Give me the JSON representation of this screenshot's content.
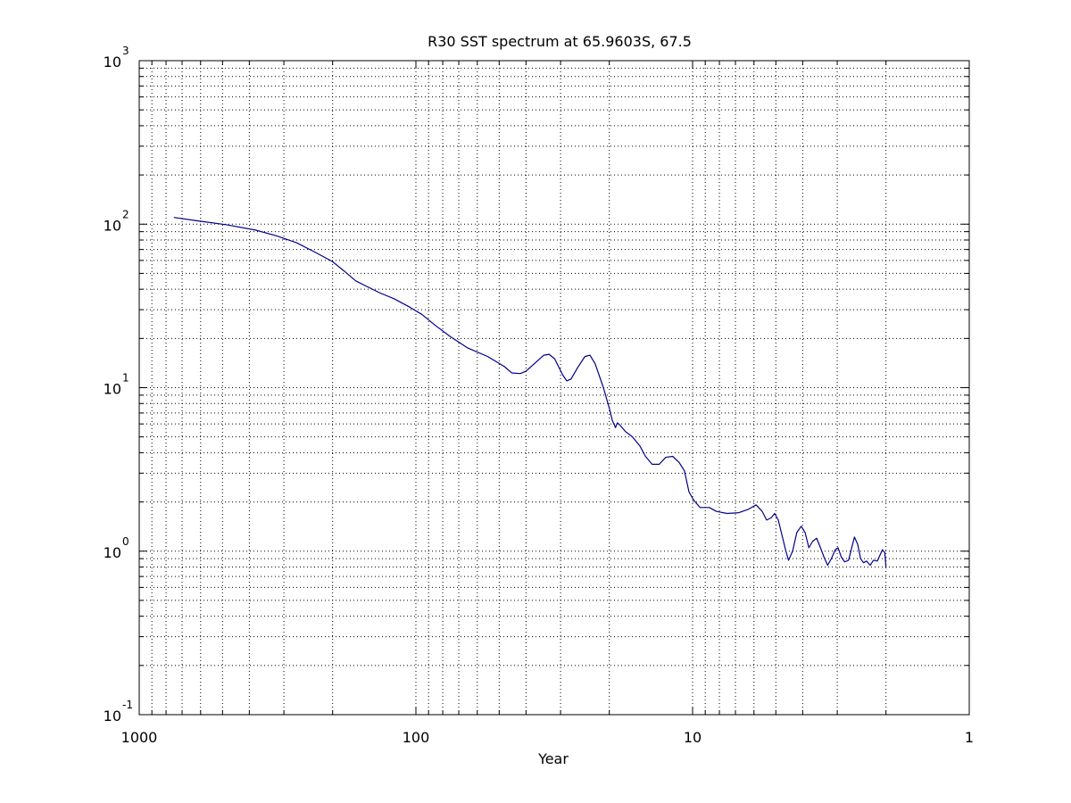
{
  "chart_data": {
    "type": "line",
    "title": "R30 SST spectrum at 65.9603S, 67.5",
    "xlabel": "Year",
    "ylabel": "",
    "x_scale": "log",
    "y_scale": "log",
    "x_reversed": true,
    "xlim": [
      1000,
      1
    ],
    "ylim": [
      0.1,
      1000
    ],
    "grid": true,
    "x_ticks": [
      {
        "value": 1000,
        "label": "1000"
      },
      {
        "value": 100,
        "label": "100"
      },
      {
        "value": 10,
        "label": "10"
      },
      {
        "value": 1,
        "label": "1"
      }
    ],
    "y_ticks": [
      {
        "value": 0.1,
        "base": "10",
        "exp": "-1"
      },
      {
        "value": 1,
        "base": "10",
        "exp": "0"
      },
      {
        "value": 10,
        "base": "10",
        "exp": "1"
      },
      {
        "value": 100,
        "base": "10",
        "exp": "2"
      },
      {
        "value": 1000,
        "base": "10",
        "exp": "3"
      }
    ],
    "series": [
      {
        "color": "#00008b",
        "points": [
          [
            750,
            110
          ],
          [
            620,
            105
          ],
          [
            480,
            99
          ],
          [
            380,
            92
          ],
          [
            320,
            85
          ],
          [
            270,
            77
          ],
          [
            230,
            67
          ],
          [
            200,
            59
          ],
          [
            180,
            51
          ],
          [
            165,
            45
          ],
          [
            150,
            41.5
          ],
          [
            135,
            38
          ],
          [
            120,
            35
          ],
          [
            105,
            31
          ],
          [
            95,
            28
          ],
          [
            85,
            24
          ],
          [
            75,
            20.5
          ],
          [
            65,
            17.5
          ],
          [
            55,
            15.5
          ],
          [
            48,
            13.5
          ],
          [
            45,
            12.3
          ],
          [
            42,
            12.2
          ],
          [
            40,
            12.6
          ],
          [
            37,
            14.2
          ],
          [
            34.5,
            15.8
          ],
          [
            33,
            16
          ],
          [
            31.5,
            15
          ],
          [
            29.5,
            12
          ],
          [
            28.5,
            11
          ],
          [
            27.5,
            11.3
          ],
          [
            26,
            13.3
          ],
          [
            24.5,
            15.5
          ],
          [
            23.5,
            15.8
          ],
          [
            22.5,
            14
          ],
          [
            21,
            10
          ],
          [
            20,
            7.5
          ],
          [
            19.5,
            6.3
          ],
          [
            19,
            5.7
          ],
          [
            18.7,
            6.1
          ],
          [
            18.3,
            5.9
          ],
          [
            17.5,
            5.4
          ],
          [
            16.5,
            5
          ],
          [
            15.5,
            4.4
          ],
          [
            14.8,
            3.8
          ],
          [
            14,
            3.4
          ],
          [
            13.2,
            3.4
          ],
          [
            12.5,
            3.75
          ],
          [
            11.8,
            3.8
          ],
          [
            11.2,
            3.5
          ],
          [
            10.7,
            3.1
          ],
          [
            10.3,
            2.3
          ],
          [
            9.9,
            2.05
          ],
          [
            9.4,
            1.85
          ],
          [
            8.7,
            1.85
          ],
          [
            8.2,
            1.75
          ],
          [
            7.5,
            1.7
          ],
          [
            6.8,
            1.72
          ],
          [
            6.3,
            1.8
          ],
          [
            5.9,
            1.92
          ],
          [
            5.6,
            1.75
          ],
          [
            5.4,
            1.55
          ],
          [
            5.2,
            1.6
          ],
          [
            5.05,
            1.7
          ],
          [
            4.9,
            1.55
          ],
          [
            4.75,
            1.25
          ],
          [
            4.6,
            1.0
          ],
          [
            4.5,
            0.88
          ],
          [
            4.35,
            1.0
          ],
          [
            4.2,
            1.3
          ],
          [
            4.05,
            1.42
          ],
          [
            3.92,
            1.3
          ],
          [
            3.8,
            1.05
          ],
          [
            3.68,
            1.15
          ],
          [
            3.56,
            1.2
          ],
          [
            3.45,
            1.05
          ],
          [
            3.35,
            0.92
          ],
          [
            3.25,
            0.82
          ],
          [
            3.15,
            0.9
          ],
          [
            3.05,
            1.02
          ],
          [
            2.98,
            1.05
          ],
          [
            2.9,
            0.92
          ],
          [
            2.82,
            0.86
          ],
          [
            2.73,
            0.88
          ],
          [
            2.66,
            1.05
          ],
          [
            2.6,
            1.22
          ],
          [
            2.53,
            1.1
          ],
          [
            2.47,
            0.9
          ],
          [
            2.41,
            0.85
          ],
          [
            2.35,
            0.87
          ],
          [
            2.28,
            0.82
          ],
          [
            2.22,
            0.88
          ],
          [
            2.15,
            0.87
          ],
          [
            2.1,
            0.95
          ],
          [
            2.06,
            1.02
          ],
          [
            2.02,
            0.98
          ],
          [
            2.0,
            0.8
          ]
        ]
      }
    ]
  }
}
